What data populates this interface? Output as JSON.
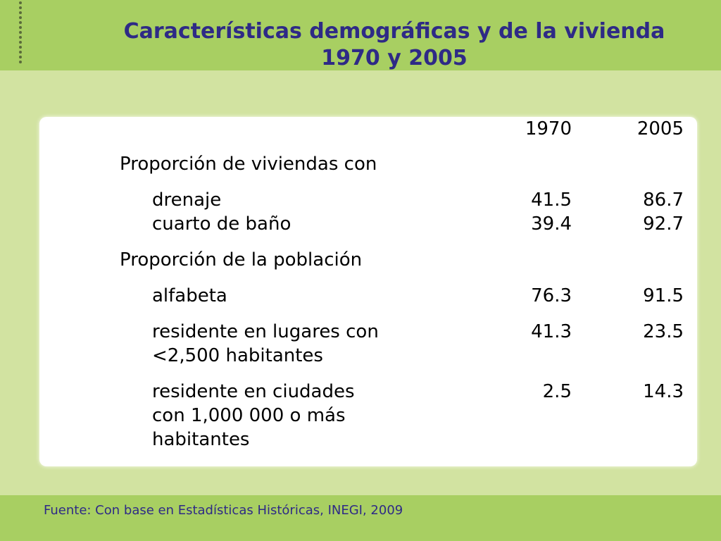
{
  "title": {
    "line1": "Características demográficas y de la vivienda",
    "line2": "1970 y 2005"
  },
  "table": {
    "col1": "1970",
    "col2": "2005",
    "section1": "Proporción de viviendas con",
    "rows1": [
      {
        "label": "drenaje",
        "v1970": "41.5",
        "v2005": "86.7"
      },
      {
        "label": "cuarto de baño",
        "v1970": "39.4",
        "v2005": "92.7"
      }
    ],
    "section2": "Proporción de la población",
    "rows2": [
      {
        "label": "alfabeta",
        "v1970": "76.3",
        "v2005": "91.5"
      },
      {
        "label": "residente en lugares con\n<2,500 habitantes",
        "v1970": "41.3",
        "v2005": "23.5"
      },
      {
        "label": "residente en ciudades\ncon 1,000 000 o más\nhabitantes",
        "v1970": "2.5",
        "v2005": "14.3"
      }
    ]
  },
  "source": "Fuente: Con base en Estadísticas Históricas, INEGI, 2009"
}
